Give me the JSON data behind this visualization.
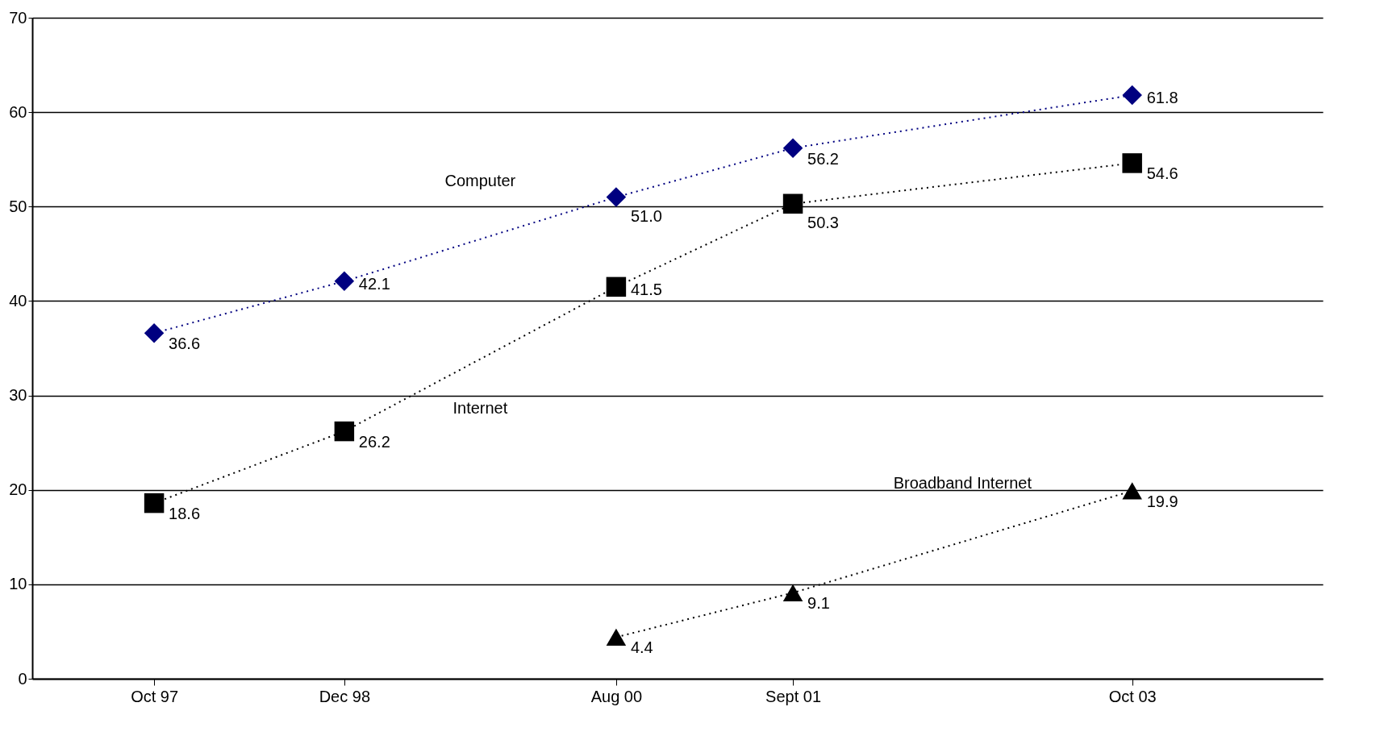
{
  "chart_data": {
    "type": "line",
    "x": [
      "1997-10",
      "1998-12",
      "2000-08",
      "2001-09",
      "2003-10"
    ],
    "series": [
      {
        "name": "Computer",
        "color": "#000080",
        "marker": "diamond",
        "values": [
          36.6,
          42.1,
          51.0,
          56.2,
          61.8
        ],
        "value_labels": [
          "36.6",
          "42.1",
          "51.0",
          "56.2",
          "61.8"
        ]
      },
      {
        "name": "Internet",
        "color": "#000000",
        "marker": "square",
        "values": [
          18.6,
          26.2,
          41.5,
          50.3,
          54.6
        ],
        "value_labels": [
          "18.6",
          "26.2",
          "41.5",
          "50.3",
          "54.6"
        ]
      },
      {
        "name": "Broadband Internet",
        "color": "#000000",
        "marker": "triangle",
        "values": [
          null,
          null,
          4.4,
          9.1,
          19.9
        ],
        "value_labels": [
          null,
          null,
          "4.4",
          "9.1",
          "19.9"
        ]
      }
    ],
    "xlim": [
      "1997-01",
      "2004-12"
    ],
    "xticks": [
      {
        "value": "1997-10",
        "label": "Oct 97"
      },
      {
        "value": "1998-12",
        "label": "Dec 98"
      },
      {
        "value": "2000-08",
        "label": "Aug 00"
      },
      {
        "value": "2001-09",
        "label": "Sept 01"
      },
      {
        "value": "2003-10",
        "label": "Oct 03"
      }
    ],
    "ylim": [
      0,
      70
    ],
    "yticks": [
      0,
      10,
      20,
      30,
      40,
      50,
      60,
      70
    ],
    "grid": "y",
    "line_style": "dotted"
  }
}
